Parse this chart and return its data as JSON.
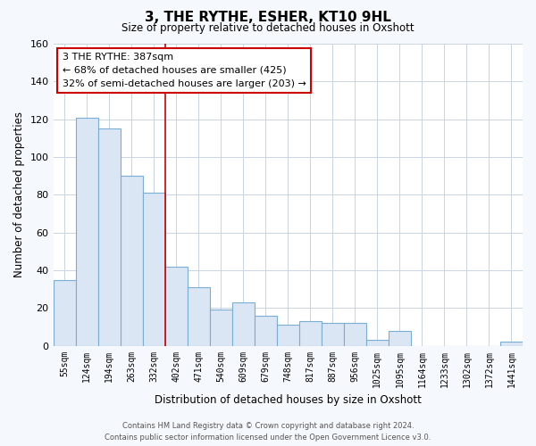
{
  "title": "3, THE RYTHE, ESHER, KT10 9HL",
  "subtitle": "Size of property relative to detached houses in Oxshott",
  "xlabel": "Distribution of detached houses by size in Oxshott",
  "ylabel": "Number of detached properties",
  "bar_labels": [
    "55sqm",
    "124sqm",
    "194sqm",
    "263sqm",
    "332sqm",
    "402sqm",
    "471sqm",
    "540sqm",
    "609sqm",
    "679sqm",
    "748sqm",
    "817sqm",
    "887sqm",
    "956sqm",
    "1025sqm",
    "1095sqm",
    "1164sqm",
    "1233sqm",
    "1302sqm",
    "1372sqm",
    "1441sqm"
  ],
  "bar_values": [
    35,
    121,
    115,
    90,
    81,
    42,
    31,
    19,
    23,
    16,
    11,
    13,
    12,
    12,
    3,
    8,
    0,
    0,
    0,
    0,
    2
  ],
  "bar_color": "#dae6f3",
  "bar_edge_color": "#7aadd4",
  "grid_color": "#c8d4e0",
  "background_color": "#ffffff",
  "fig_background_color": "#f5f8fc",
  "marker_line_index": 5,
  "marker_line_color": "#cc0000",
  "annotation_title": "3 THE RYTHE: 387sqm",
  "annotation_line1": "← 68% of detached houses are smaller (425)",
  "annotation_line2": "32% of semi-detached houses are larger (203) →",
  "annotation_box_color": "#ffffff",
  "annotation_box_edge_color": "#cc0000",
  "ylim": [
    0,
    160
  ],
  "yticks": [
    0,
    20,
    40,
    60,
    80,
    100,
    120,
    140,
    160
  ],
  "footer_line1": "Contains HM Land Registry data © Crown copyright and database right 2024.",
  "footer_line2": "Contains public sector information licensed under the Open Government Licence v3.0."
}
